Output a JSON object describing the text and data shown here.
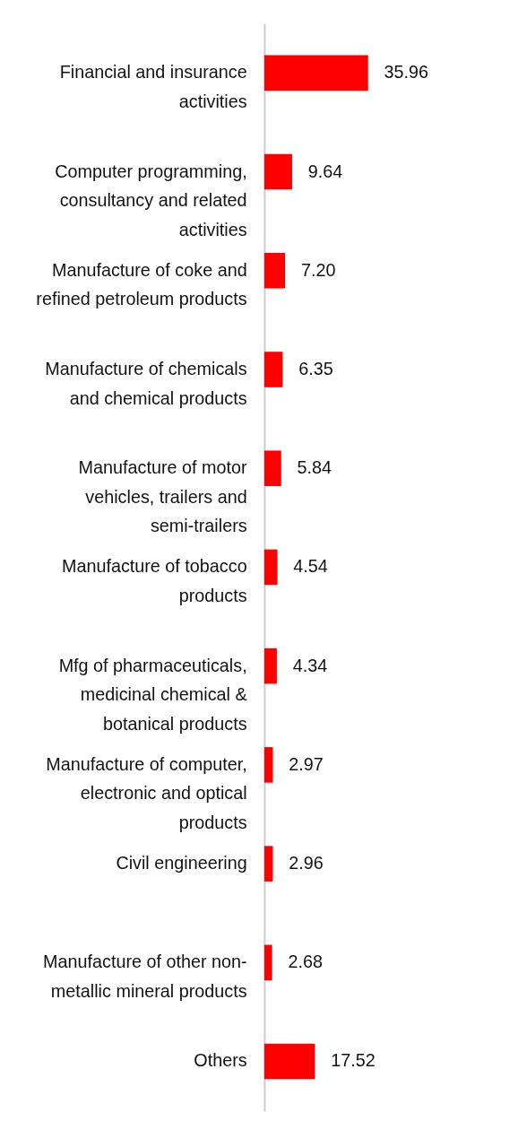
{
  "chart_data": {
    "type": "bar",
    "orientation": "horizontal",
    "color": "#ff0000",
    "categories": [
      "Financial and insurance activities",
      "Computer programming, consultancy and related activities",
      "Manufacture of coke and refined petroleum products",
      "Manufacture of chemicals and chemical products",
      "Manufacture of motor vehicles, trailers and semi-trailers",
      "Manufacture of tobacco products",
      "Mfg of pharmaceuticals, medicinal chemical & botanical products",
      "Manufacture of computer, electronic and optical products",
      "Civil engineering",
      "Manufacture of other non-metallic mineral products",
      "Others"
    ],
    "values": [
      35.96,
      9.64,
      7.2,
      6.35,
      5.84,
      4.54,
      4.34,
      2.97,
      2.96,
      2.68,
      17.52
    ],
    "value_labels": [
      "35.96",
      "9.64",
      "7.20",
      "6.35",
      "5.84",
      "4.54",
      "4.34",
      "2.97",
      "2.96",
      "2.68",
      "17.52"
    ]
  }
}
